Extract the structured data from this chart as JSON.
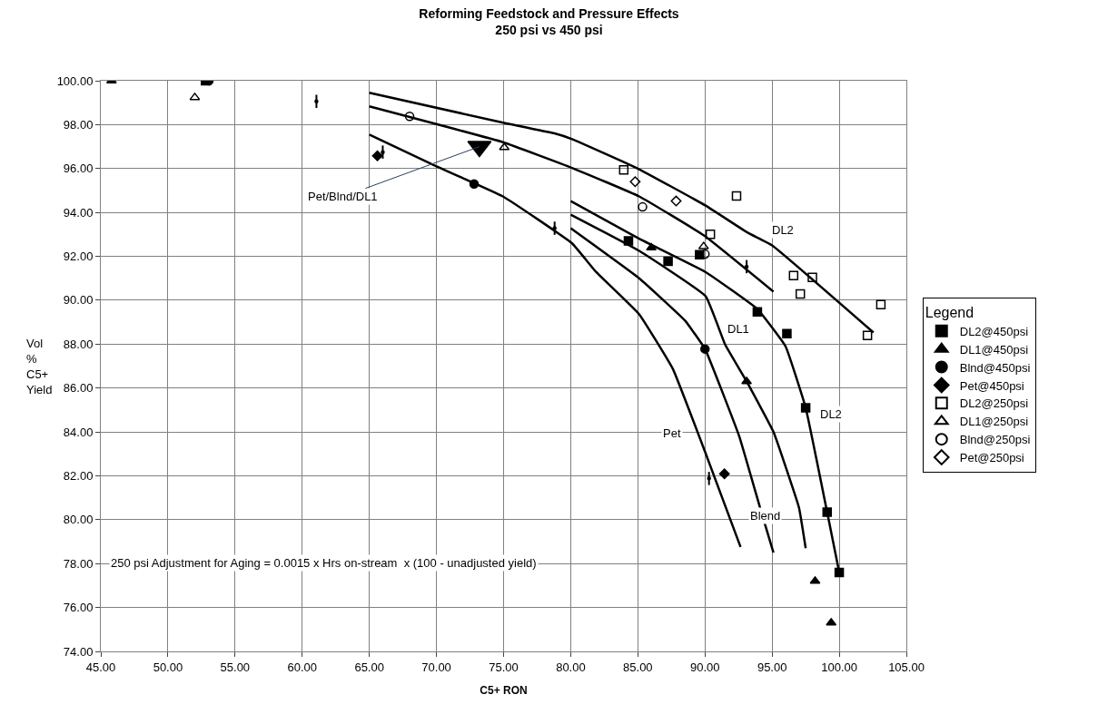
{
  "chart_data": {
    "type": "scatter",
    "title": "Reforming Feedstock and Pressure Effects",
    "subtitle": "250 psi vs 450 psi",
    "xlabel": "C5+ RON",
    "ylabel": "Vol % C5+ Yield",
    "legend_title": "Legend",
    "legend": "right",
    "grid": true,
    "xlim": [
      45,
      105
    ],
    "ylim": [
      74,
      100
    ],
    "xticks": [
      {
        "value": 45,
        "label": "45.00"
      },
      {
        "value": 50,
        "label": "50.00"
      },
      {
        "value": 55,
        "label": "55.00"
      },
      {
        "value": 60,
        "label": "60.00"
      },
      {
        "value": 65,
        "label": "65.00"
      },
      {
        "value": 70,
        "label": "70.00"
      },
      {
        "value": 75,
        "label": "75.00"
      },
      {
        "value": 80,
        "label": "80.00"
      },
      {
        "value": 85,
        "label": "85.00"
      },
      {
        "value": 90,
        "label": "90.00"
      },
      {
        "value": 95,
        "label": "95.00"
      },
      {
        "value": 100,
        "label": "100.00"
      },
      {
        "value": 105,
        "label": "105.00"
      }
    ],
    "yticks": [
      {
        "value": 74,
        "label": "74.00"
      },
      {
        "value": 76,
        "label": "76.00"
      },
      {
        "value": 78,
        "label": "78.00"
      },
      {
        "value": 80,
        "label": "80.00"
      },
      {
        "value": 82,
        "label": "82.00"
      },
      {
        "value": 84,
        "label": "84.00"
      },
      {
        "value": 86,
        "label": "86.00"
      },
      {
        "value": 88,
        "label": "88.00"
      },
      {
        "value": 90,
        "label": "90.00"
      },
      {
        "value": 92,
        "label": "92.00"
      },
      {
        "value": 94,
        "label": "94.00"
      },
      {
        "value": 96,
        "label": "96.00"
      },
      {
        "value": 98,
        "label": "98.00"
      },
      {
        "value": 100,
        "label": "100.00"
      }
    ],
    "series": [
      {
        "type": "line",
        "color": "#000000",
        "marker": "none",
        "x": [
          65,
          74.9,
          78.8,
          80.1,
          84.9,
          90.05,
          93.2,
          95.0,
          102.55
        ],
        "values": [
          99.45,
          98.1,
          97.6,
          97.34,
          96.03,
          94.31,
          93.07,
          92.5,
          88.53
        ]
      },
      {
        "type": "line",
        "color": "#000000",
        "marker": "none",
        "x": [
          65,
          74.95,
          80.1,
          85.1,
          89.95,
          95.1
        ],
        "values": [
          98.83,
          97.2,
          96.03,
          94.73,
          92.94,
          90.39
        ]
      },
      {
        "type": "line",
        "color": "#000000",
        "marker": "none",
        "x": [
          65,
          70,
          74.95,
          80.1,
          81.9,
          85.1,
          87.6,
          90.05,
          92.65
        ],
        "values": [
          97.55,
          96.1,
          94.73,
          92.59,
          91.28,
          89.36,
          86.88,
          83.02,
          78.76
        ]
      },
      {
        "type": "line",
        "color": "#000000",
        "marker": "none",
        "x": [
          80,
          85.1,
          88.5,
          90.0,
          92.55,
          94.1,
          95.1
        ],
        "values": [
          93.28,
          91.0,
          89.08,
          87.78,
          83.8,
          80.55,
          78.5
        ]
      },
      {
        "type": "line",
        "color": "#000000",
        "marker": "none",
        "x": [
          80,
          85.1,
          90.05,
          91.5,
          93.1,
          95.1,
          97.0,
          97.5
        ],
        "values": [
          93.9,
          92.25,
          90.18,
          87.98,
          86.3,
          84.0,
          80.55,
          78.7
        ]
      },
      {
        "type": "line",
        "color": "#000000",
        "marker": "none",
        "x": [
          80,
          85.1,
          90.05,
          93.9,
          96.0,
          97.5,
          99.1,
          100.0
        ],
        "values": [
          94.52,
          92.8,
          91.28,
          89.6,
          87.9,
          85.1,
          80.34,
          77.6
        ]
      },
      {
        "name": "DL2@450psi",
        "color": "#000000",
        "marker": "square",
        "x": [
          52.8,
          84.3,
          87.25,
          89.6,
          93.9,
          96.1,
          97.5,
          99.1,
          100.0
        ],
        "values": [
          100.0,
          92.7,
          91.77,
          92.07,
          89.47,
          88.48,
          85.1,
          80.34,
          77.6
        ]
      },
      {
        "name": "DL1@450psi",
        "color": "#000000",
        "marker": "triangle",
        "x": [
          45.8,
          86.0,
          93.1,
          98.2,
          99.4
        ],
        "values": [
          100.0,
          92.39,
          86.3,
          77.2,
          75.3
        ]
      },
      {
        "name": "Blnd@450psi",
        "color": "#000000",
        "marker": "circle",
        "x": [
          53.05,
          72.8,
          90.0
        ],
        "values": [
          100.0,
          95.3,
          87.78
        ]
      },
      {
        "name": "Pet@450psi",
        "color": "#000000",
        "marker": "diamond",
        "x": [
          65.6,
          91.45
        ],
        "values": [
          96.58,
          82.09
        ]
      },
      {
        "name": "DL2@250psi",
        "color": "#000000",
        "marker": "square-open",
        "x": [
          83.95,
          92.35,
          90.4,
          96.6,
          98.0,
          97.1,
          103.1,
          102.1
        ],
        "values": [
          95.94,
          94.75,
          93.0,
          91.12,
          91.04,
          90.29,
          89.8,
          88.4
        ]
      },
      {
        "name": "DL1@250psi",
        "color": "#000000",
        "marker": "triangle-open",
        "x": [
          52.0,
          75.05,
          89.9
        ],
        "values": [
          99.24,
          96.96,
          92.45
        ]
      },
      {
        "name": "Blnd@250psi",
        "color": "#000000",
        "marker": "circle-open",
        "x": [
          68.0,
          85.35,
          90.0
        ],
        "values": [
          98.38,
          94.25,
          92.1
        ]
      },
      {
        "name": "Pet@250psi",
        "color": "#000000",
        "marker": "diamond-open",
        "x": [
          84.8,
          87.85
        ],
        "values": [
          95.4,
          94.52
        ]
      },
      {
        "color": "#000000",
        "marker": "circle",
        "x": [
          61.06,
          66.0,
          78.8,
          93.1,
          90.3
        ],
        "values": [
          99.06,
          96.75,
          93.28,
          91.53,
          81.88
        ],
        "errors": [
          0.3,
          0.3,
          0.3,
          0.3,
          0.3
        ]
      },
      {
        "color": "#000000",
        "marker": "triangle-down",
        "x": [
          73.2
        ],
        "values": [
          97.0
        ]
      }
    ],
    "annotations": [
      {
        "text": "Pet/Blnd/DL1",
        "x": 73.2,
        "y": 97.0
      },
      {
        "text": "DL2",
        "x": 95.8,
        "y": 93.2
      },
      {
        "text": "DL1",
        "x": 92.5,
        "y": 88.7
      },
      {
        "text": "DL2",
        "x": 99.4,
        "y": 84.8
      },
      {
        "text": "Pet",
        "x": 87.55,
        "y": 83.93
      },
      {
        "text": "Blend",
        "x": 94.5,
        "y": 80.2
      },
      "250 psi Adjustment for Aging = 0.0015 x Hrs on-stream  x (100 - unadjusted yield)"
    ]
  }
}
